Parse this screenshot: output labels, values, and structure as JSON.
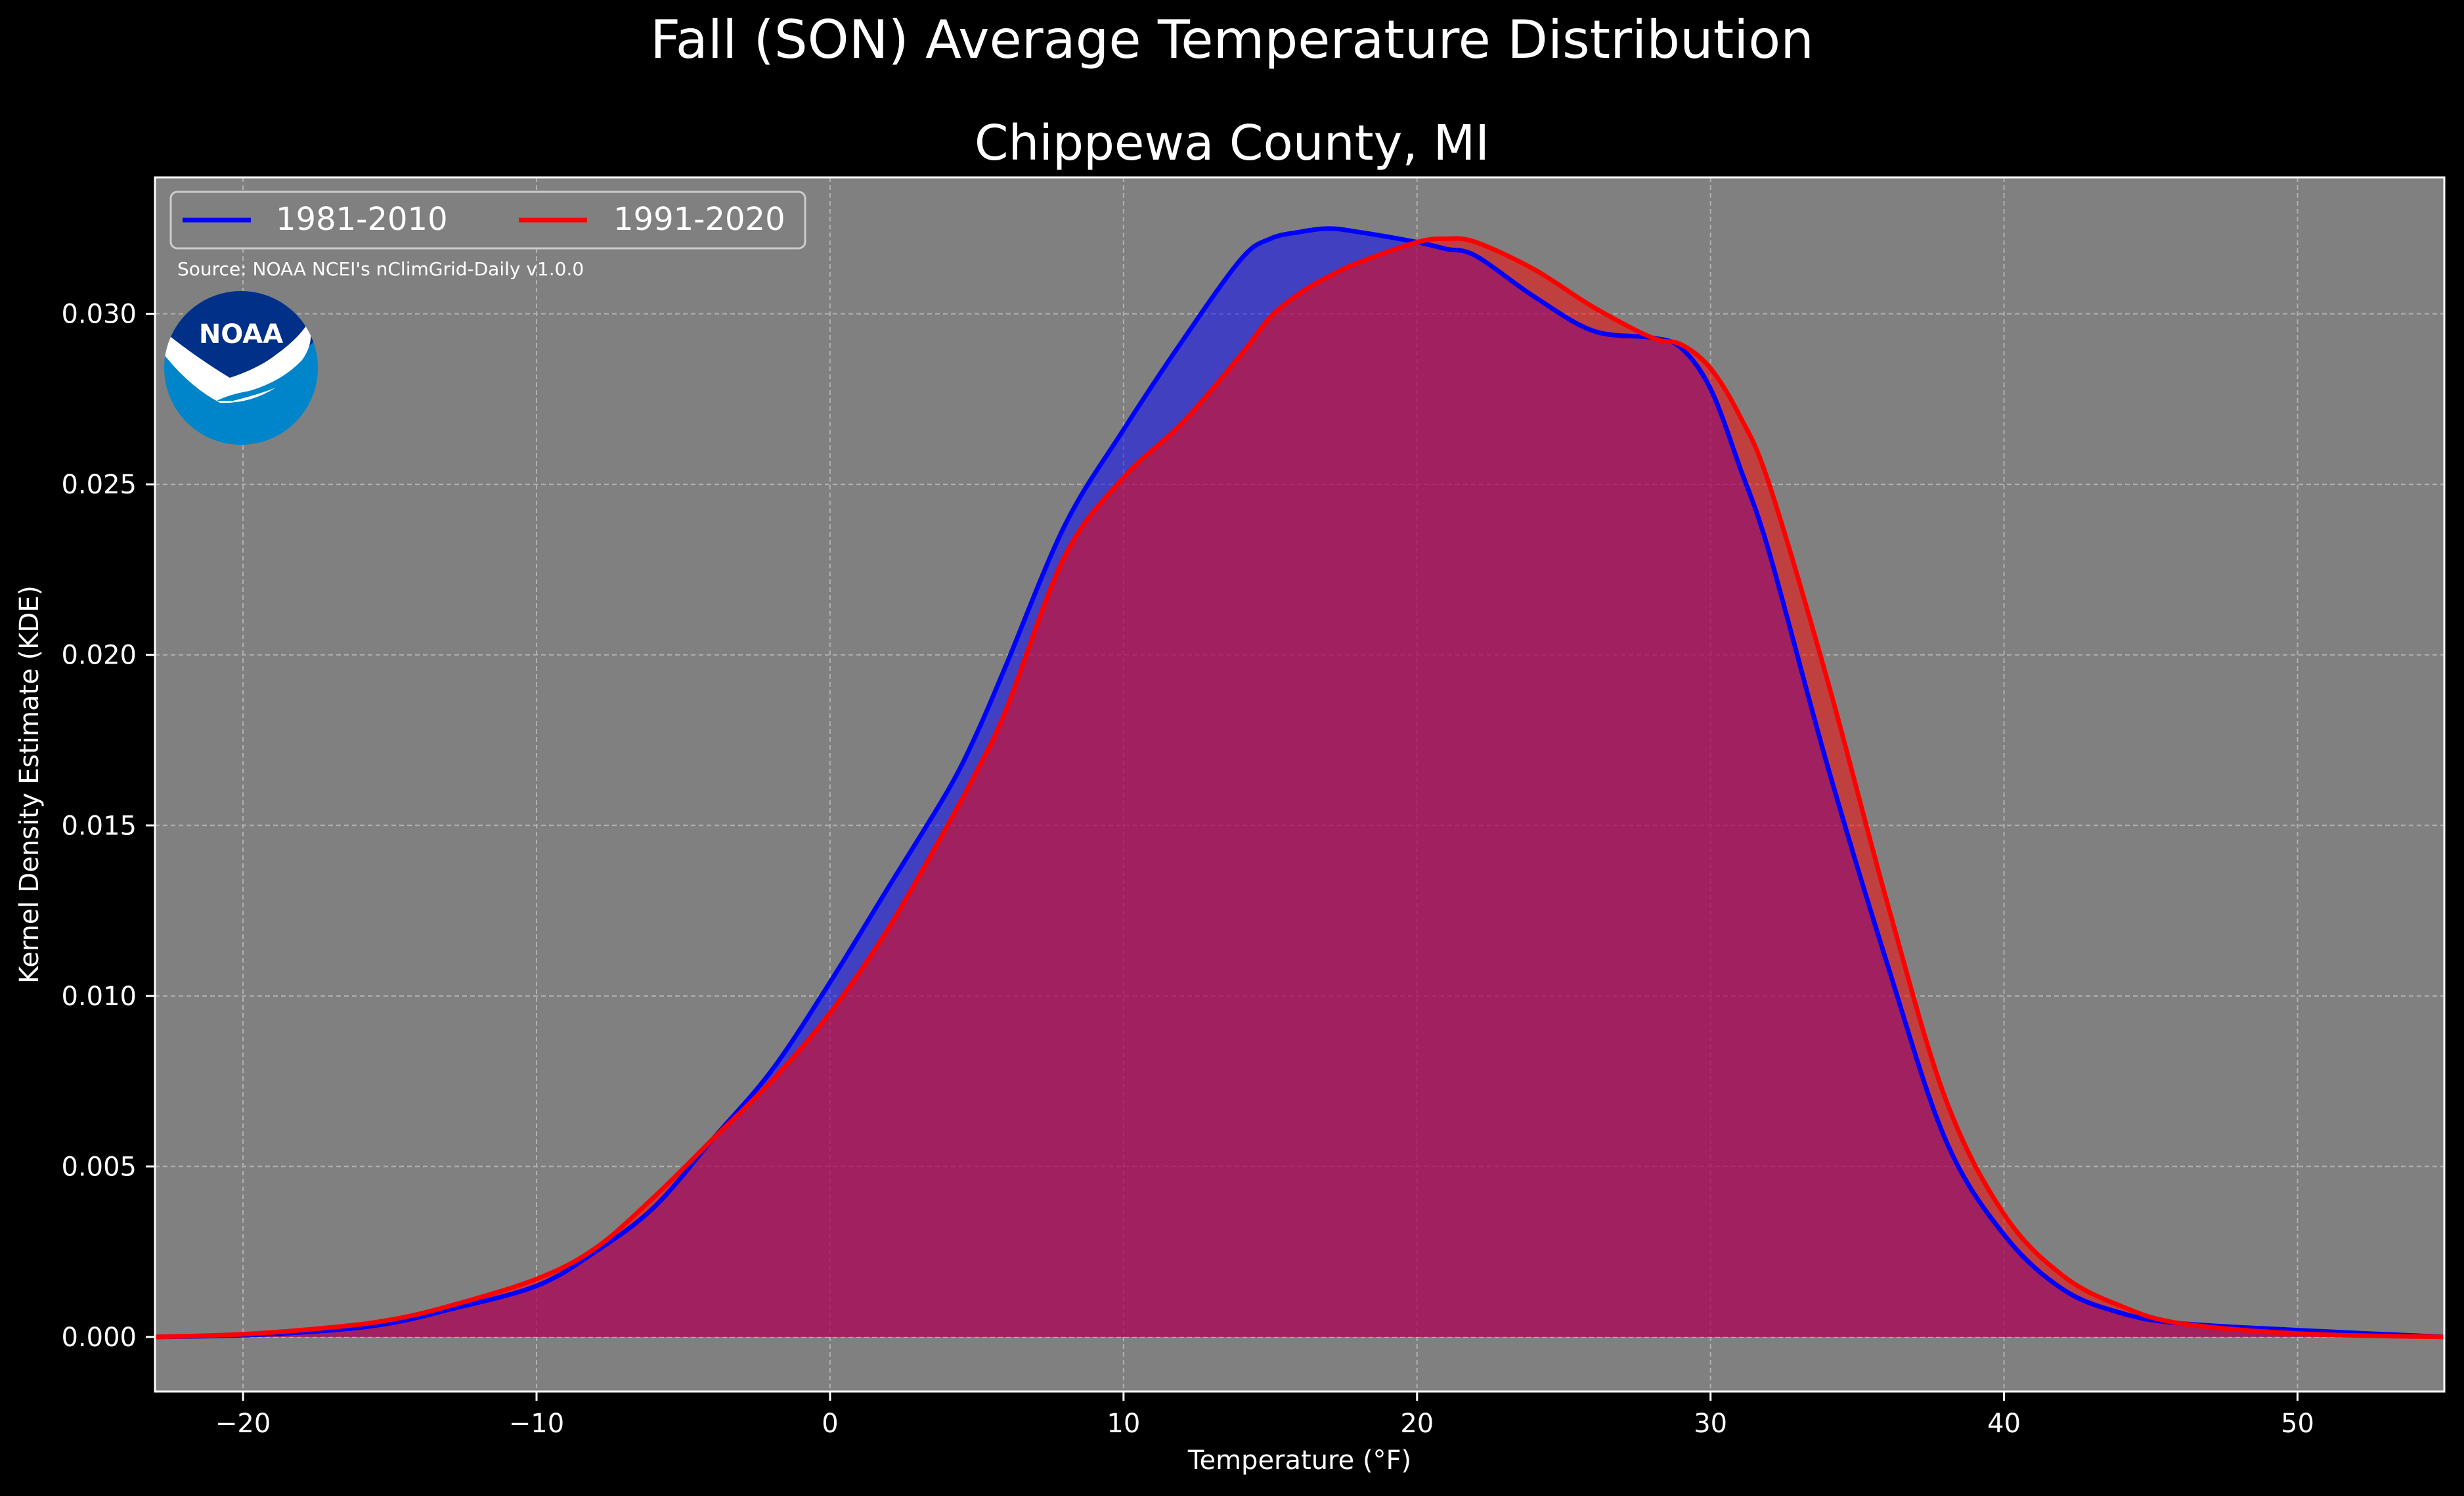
{
  "chart_data": {
    "type": "area",
    "suptitle": "Fall (SON) Average Temperature Distribution",
    "title": "Chippewa County, MI",
    "xlabel": "Temperature (°F)",
    "ylabel": "Kernel Density Estimate (KDE)",
    "xlim": [
      -23,
      55
    ],
    "ylim": [
      -0.0016,
      0.034
    ],
    "xticks": [
      -20,
      -10,
      0,
      10,
      20,
      30,
      40,
      50
    ],
    "xtick_labels": [
      "−20",
      "−10",
      "0",
      "10",
      "20",
      "30",
      "40",
      "50"
    ],
    "yticks": [
      0.0,
      0.005,
      0.01,
      0.015,
      0.02,
      0.025,
      0.03
    ],
    "ytick_labels": [
      "0.000",
      "0.005",
      "0.010",
      "0.015",
      "0.020",
      "0.025",
      "0.030"
    ],
    "grid": true,
    "legend_position": "top-left",
    "source_note": "Source: NOAA NCEI's nClimGrid-Daily v1.0.0",
    "logo_text": "NOAA",
    "colors": {
      "figure_bg": "#000000",
      "axes_bg": "#808080",
      "series_1": "#0000ff",
      "series_2": "#ff0000"
    },
    "x": [
      -23,
      -20,
      -17,
      -15,
      -13,
      -10,
      -8,
      -6,
      -4,
      -2,
      0,
      2,
      4,
      5,
      6,
      8,
      10,
      12,
      14,
      15,
      16,
      17,
      18,
      20,
      21,
      22,
      24,
      26,
      28,
      29,
      30,
      31,
      32,
      34,
      36,
      38,
      40,
      42,
      44,
      46,
      50,
      55
    ],
    "series": [
      {
        "name": "1981-2010",
        "values": [
          0.0,
          5e-05,
          0.0002,
          0.0004,
          0.0008,
          0.0015,
          0.0025,
          0.0038,
          0.0058,
          0.0078,
          0.0104,
          0.0132,
          0.016,
          0.0177,
          0.0197,
          0.0238,
          0.0266,
          0.0292,
          0.0316,
          0.0322,
          0.0324,
          0.0325,
          0.0324,
          0.0321,
          0.0319,
          0.0317,
          0.0305,
          0.0295,
          0.0293,
          0.029,
          0.0278,
          0.0255,
          0.023,
          0.0167,
          0.011,
          0.0058,
          0.003,
          0.0014,
          0.0007,
          0.0004,
          0.0002,
          0.0
        ]
      },
      {
        "name": "1991-2020",
        "values": [
          0.0,
          8e-05,
          0.00028,
          0.0005,
          0.0009,
          0.0017,
          0.0026,
          0.0041,
          0.0058,
          0.0075,
          0.0095,
          0.012,
          0.015,
          0.0166,
          0.0184,
          0.0229,
          0.0252,
          0.0268,
          0.0288,
          0.0299,
          0.0306,
          0.0311,
          0.0315,
          0.0321,
          0.0322,
          0.0321,
          0.0313,
          0.0302,
          0.0293,
          0.0291,
          0.0284,
          0.027,
          0.025,
          0.0192,
          0.0128,
          0.007,
          0.0036,
          0.0018,
          0.0009,
          0.0004,
          0.0001,
          0.0
        ]
      }
    ]
  }
}
